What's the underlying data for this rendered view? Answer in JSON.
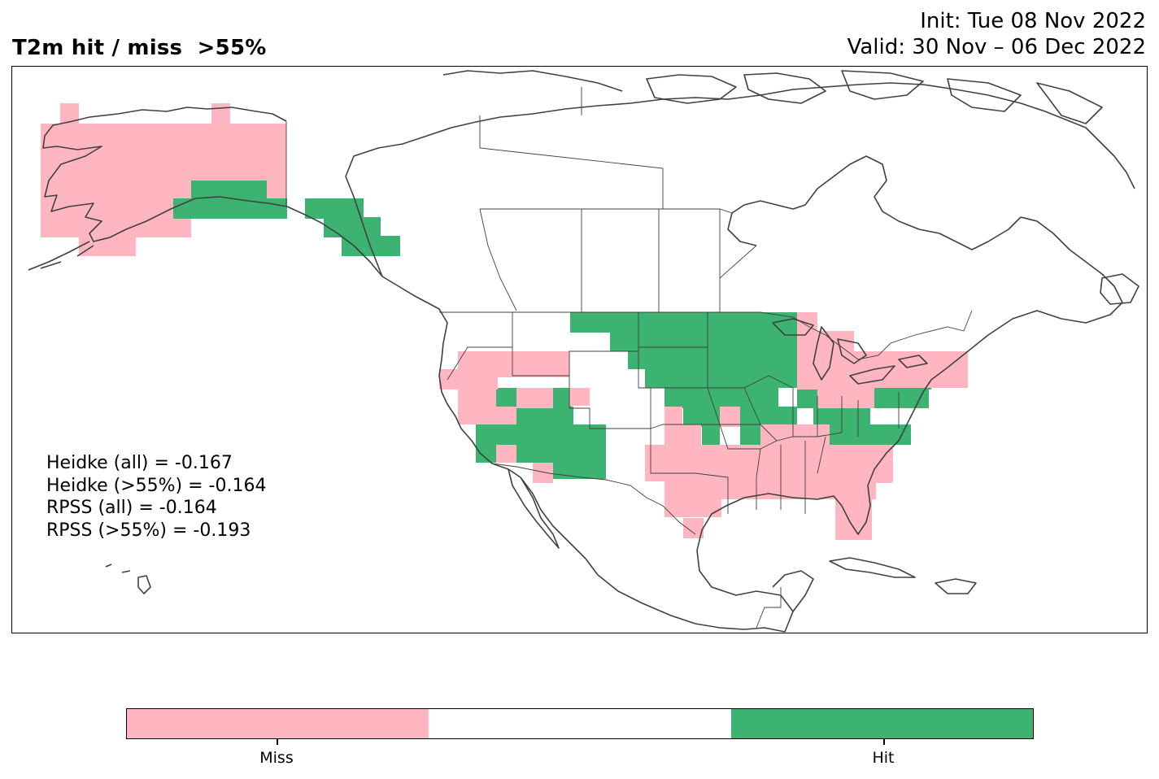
{
  "title": "T2m hit / miss  >55%",
  "init_label": "Init: Tue 08 Nov 2022",
  "valid_label": "Valid: 30 Nov – 06 Dec 2022",
  "scores": [
    {
      "text": "Heidke (all) = -0.167"
    },
    {
      "text": "Heidke (>55%) = -0.164"
    },
    {
      "text": "RPSS (all) = -0.164"
    },
    {
      "text": "RPSS (>55%) = -0.193"
    }
  ],
  "colors": {
    "miss": "#ffb6c1",
    "neutral": "#ffffff",
    "hit": "#3cb371",
    "coast": "#404040",
    "border": "#404040"
  },
  "colorbar": {
    "categories": [
      "Miss",
      "",
      "Hit"
    ],
    "labels": [
      {
        "text": "Miss"
      },
      {
        "text": "Hit"
      }
    ]
  }
}
